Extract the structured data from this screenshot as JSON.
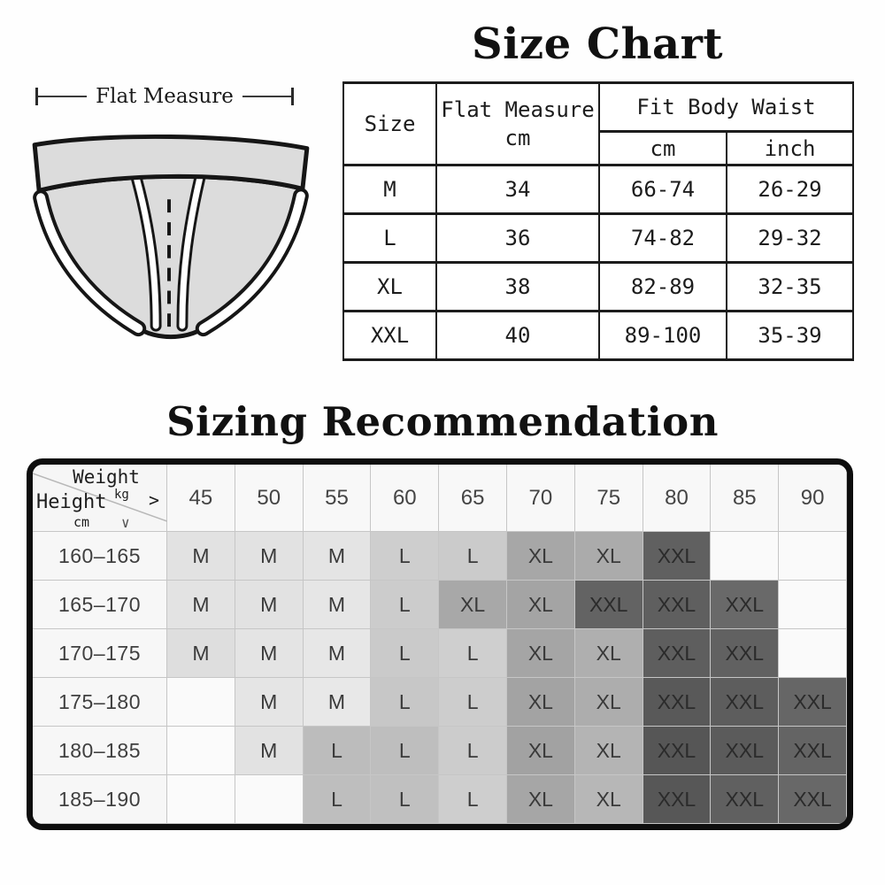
{
  "size_chart": {
    "title": "Size Chart",
    "measure_label": "Flat Measure",
    "illustration": "briefs-flat-drawing",
    "table": {
      "col_size_header": "Size",
      "col_flat_header_line1": "Flat Measure",
      "col_flat_header_line2": "cm",
      "group_header": "Fit Body Waist",
      "sub_headers": [
        "cm",
        "inch"
      ],
      "rows": [
        {
          "size": "M",
          "flat": "34",
          "cm": "66-74",
          "inch": "26-29"
        },
        {
          "size": "L",
          "flat": "36",
          "cm": "74-82",
          "inch": "29-32"
        },
        {
          "size": "XL",
          "flat": "38",
          "cm": "82-89",
          "inch": "32-35"
        },
        {
          "size": "XXL",
          "flat": "40",
          "cm": "89-100",
          "inch": "35-39"
        }
      ]
    }
  },
  "sizing_recommendation": {
    "title": "Sizing Recommendation",
    "corner": {
      "weight_label": "Weight",
      "weight_unit": "kg",
      "weight_arrow": ">",
      "height_label": "Height",
      "height_unit": "cm",
      "height_arrow": "∨"
    },
    "weight_columns": [
      "45",
      "50",
      "55",
      "60",
      "65",
      "70",
      "75",
      "80",
      "85",
      "90"
    ],
    "size_shades": {
      "M": "#e3e3e3",
      "L": "#c8c8c8",
      "XL": "#a8a8a8",
      "XXL": "#5e5e5e",
      "empty": "#fafafa"
    },
    "rows": [
      {
        "height": "160–165",
        "cells": [
          {
            "size": "M",
            "bg": "#e2e2e2"
          },
          {
            "size": "M",
            "bg": "#e2e2e2"
          },
          {
            "size": "M",
            "bg": "#e4e4e4"
          },
          {
            "size": "L",
            "bg": "#cecece"
          },
          {
            "size": "L",
            "bg": "#cbcbcb"
          },
          {
            "size": "XL",
            "bg": "#a7a7a7"
          },
          {
            "size": "XL",
            "bg": "#ababab"
          },
          {
            "size": "XXL",
            "bg": "#606060"
          },
          {
            "size": "",
            "bg": "#fafafa"
          },
          {
            "size": "",
            "bg": "#fafafa"
          }
        ]
      },
      {
        "height": "165–170",
        "cells": [
          {
            "size": "M",
            "bg": "#e3e3e3"
          },
          {
            "size": "M",
            "bg": "#e2e2e2"
          },
          {
            "size": "M",
            "bg": "#e6e6e6"
          },
          {
            "size": "L",
            "bg": "#cccccc"
          },
          {
            "size": "XL",
            "bg": "#a8a8a8"
          },
          {
            "size": "XL",
            "bg": "#a4a4a4"
          },
          {
            "size": "XXL",
            "bg": "#636363"
          },
          {
            "size": "XXL",
            "bg": "#5f5f5f"
          },
          {
            "size": "XXL",
            "bg": "#696969"
          },
          {
            "size": "",
            "bg": "#fafafa"
          }
        ]
      },
      {
        "height": "170–175",
        "cells": [
          {
            "size": "M",
            "bg": "#dedede"
          },
          {
            "size": "M",
            "bg": "#e4e4e4"
          },
          {
            "size": "M",
            "bg": "#e7e7e7"
          },
          {
            "size": "L",
            "bg": "#cacaca"
          },
          {
            "size": "L",
            "bg": "#cfcfcf"
          },
          {
            "size": "XL",
            "bg": "#a5a5a5"
          },
          {
            "size": "XL",
            "bg": "#afafaf"
          },
          {
            "size": "XXL",
            "bg": "#5e5e5e"
          },
          {
            "size": "XXL",
            "bg": "#616161"
          },
          {
            "size": "",
            "bg": "#fafafa"
          }
        ]
      },
      {
        "height": "175–180",
        "cells": [
          {
            "size": "",
            "bg": "#fafafa"
          },
          {
            "size": "M",
            "bg": "#e5e5e5"
          },
          {
            "size": "M",
            "bg": "#e8e8e8"
          },
          {
            "size": "L",
            "bg": "#c7c7c7"
          },
          {
            "size": "L",
            "bg": "#cdcdcd"
          },
          {
            "size": "XL",
            "bg": "#a3a3a3"
          },
          {
            "size": "XL",
            "bg": "#adadad"
          },
          {
            "size": "XXL",
            "bg": "#595959"
          },
          {
            "size": "XXL",
            "bg": "#5d5d5d"
          },
          {
            "size": "XXL",
            "bg": "#666666"
          }
        ]
      },
      {
        "height": "180–185",
        "cells": [
          {
            "size": "",
            "bg": "#fbfbfb"
          },
          {
            "size": "M",
            "bg": "#e2e2e2"
          },
          {
            "size": "L",
            "bg": "#bcbcbc"
          },
          {
            "size": "L",
            "bg": "#bebebe"
          },
          {
            "size": "L",
            "bg": "#cccccc"
          },
          {
            "size": "XL",
            "bg": "#a2a2a2"
          },
          {
            "size": "XL",
            "bg": "#b4b4b4"
          },
          {
            "size": "XXL",
            "bg": "#565656"
          },
          {
            "size": "XXL",
            "bg": "#5b5b5b"
          },
          {
            "size": "XXL",
            "bg": "#646464"
          }
        ]
      },
      {
        "height": "185–190",
        "cells": [
          {
            "size": "",
            "bg": "#fbfbfb"
          },
          {
            "size": "",
            "bg": "#fafafa"
          },
          {
            "size": "L",
            "bg": "#bebebe"
          },
          {
            "size": "L",
            "bg": "#c0c0c0"
          },
          {
            "size": "L",
            "bg": "#cecece"
          },
          {
            "size": "XL",
            "bg": "#a6a6a6"
          },
          {
            "size": "XL",
            "bg": "#b7b7b7"
          },
          {
            "size": "XXL",
            "bg": "#575757"
          },
          {
            "size": "XXL",
            "bg": "#606060"
          },
          {
            "size": "XXL",
            "bg": "#686868"
          }
        ]
      }
    ]
  }
}
